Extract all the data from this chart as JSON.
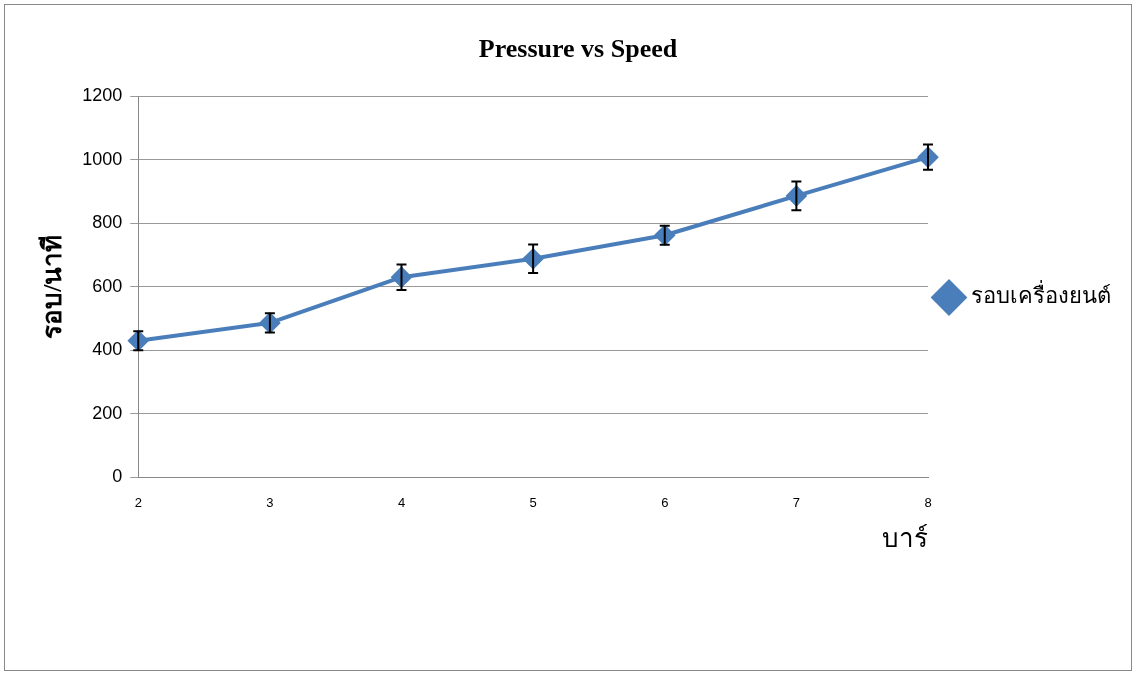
{
  "chart_data": {
    "type": "line",
    "title": "Pressure vs Speed",
    "xlabel": "บาร์",
    "ylabel": "รอบ/นาที",
    "categories": [
      "2",
      "3",
      "4",
      "5",
      "6",
      "7",
      "8"
    ],
    "series": [
      {
        "name": "รอบเครื่องยนต์",
        "color": "#4a7ebb",
        "values": [
          430,
          486,
          630,
          688,
          762,
          886,
          1008
        ],
        "errors": [
          30,
          30,
          40,
          45,
          30,
          45,
          40
        ]
      }
    ],
    "ylim": [
      0,
      1200
    ],
    "yticks": [
      0,
      200,
      400,
      600,
      800,
      1000,
      1200
    ],
    "grid": "y",
    "legend": "right",
    "marker": "diamond",
    "line_style": "solid"
  }
}
